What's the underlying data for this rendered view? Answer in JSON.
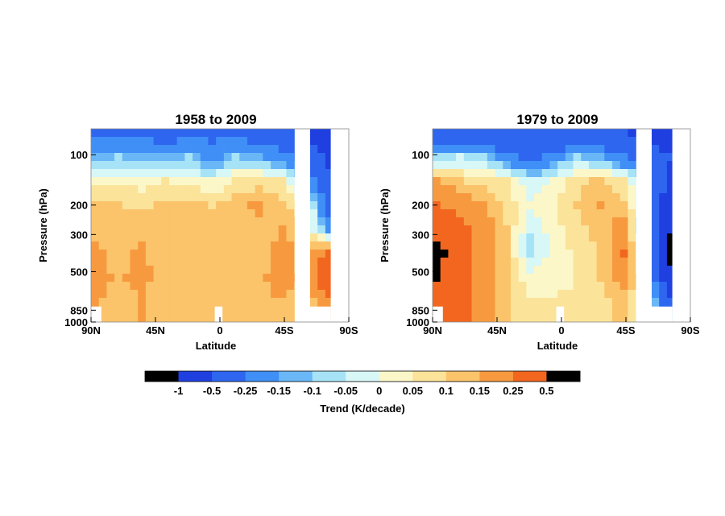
{
  "chart_data": [
    {
      "type": "heatmap",
      "title": "1958 to 2009",
      "xlabel": "Latitude",
      "ylabel": "Pressure (hPa)",
      "x_ticks": [
        "90N",
        "45N",
        "0",
        "45S",
        "90S"
      ],
      "y_ticks": [
        "100",
        "200",
        "300",
        "500",
        "850",
        "1000"
      ],
      "x_values": [
        90,
        45,
        0,
        -45,
        -90
      ],
      "y_values": [
        100,
        200,
        300,
        500,
        850,
        1000
      ],
      "y_scale": "log",
      "ylim": [
        1000,
        70
      ],
      "grid": false,
      "field": [
        [
          -0.3,
          -0.28,
          -0.3,
          -0.32,
          -0.3,
          -0.28,
          -0.3,
          -0.35,
          -0.4,
          -0.5,
          -0.7
        ],
        [
          -0.12,
          -0.1,
          -0.12,
          -0.15,
          -0.1,
          -0.2,
          -0.1,
          -0.15,
          -0.2,
          -0.3,
          -0.6
        ],
        [
          0.02,
          0.04,
          0.03,
          0.06,
          0.02,
          0.0,
          0.05,
          0.08,
          0.05,
          -0.1,
          -0.4
        ],
        [
          0.12,
          0.1,
          0.08,
          0.12,
          0.14,
          0.09,
          0.13,
          0.16,
          0.12,
          0.05,
          -0.3
        ],
        [
          0.13,
          0.12,
          0.14,
          0.12,
          0.1,
          0.12,
          0.14,
          0.13,
          0.15,
          0.1,
          -0.2
        ],
        [
          0.16,
          0.13,
          0.16,
          0.11,
          0.12,
          0.11,
          0.13,
          0.12,
          0.18,
          0.12,
          0.3
        ],
        [
          0.18,
          0.14,
          0.17,
          0.12,
          0.11,
          0.12,
          0.12,
          0.13,
          0.2,
          0.13,
          0.4
        ],
        [
          0.15,
          0.13,
          0.15,
          0.12,
          0.12,
          0.11,
          0.12,
          0.13,
          0.14,
          0.12,
          0.2
        ]
      ]
    },
    {
      "type": "heatmap",
      "title": "1979 to 2009",
      "xlabel": "Latitude",
      "ylabel": "Pressure (hPa)",
      "x_ticks": [
        "90N",
        "45N",
        "0",
        "45S",
        "90S"
      ],
      "y_ticks": [
        "100",
        "200",
        "300",
        "500",
        "850",
        "1000"
      ],
      "x_values": [
        90,
        45,
        0,
        -45,
        -90
      ],
      "y_values": [
        100,
        200,
        300,
        500,
        850,
        1000
      ],
      "y_scale": "log",
      "ylim": [
        1000,
        70
      ],
      "grid": false,
      "field": [
        [
          -0.45,
          -0.4,
          -0.42,
          -0.45,
          -0.5,
          -0.45,
          -0.4,
          -0.45,
          -0.5,
          -0.6,
          -0.8
        ],
        [
          -0.1,
          -0.05,
          -0.1,
          -0.2,
          -0.3,
          -0.2,
          -0.1,
          -0.15,
          -0.25,
          -0.3,
          -0.5
        ],
        [
          0.15,
          0.1,
          0.08,
          0.05,
          -0.05,
          0.02,
          0.08,
          0.12,
          0.05,
          -0.1,
          -0.6
        ],
        [
          0.25,
          0.2,
          0.15,
          0.08,
          0.02,
          0.04,
          0.1,
          0.15,
          0.12,
          -0.1,
          -0.8
        ],
        [
          0.4,
          0.3,
          0.2,
          0.1,
          -0.05,
          0.03,
          0.08,
          0.12,
          0.2,
          -0.2,
          -1.0
        ],
        [
          0.6,
          0.3,
          0.2,
          0.1,
          -0.08,
          0.02,
          0.06,
          0.1,
          0.25,
          -0.1,
          -1.2
        ],
        [
          0.55,
          0.3,
          0.22,
          0.1,
          0.02,
          0.04,
          0.05,
          0.1,
          0.18,
          0.0,
          -0.9
        ],
        [
          0.3,
          0.28,
          0.2,
          0.1,
          0.05,
          0.05,
          0.06,
          0.08,
          0.12,
          0.0,
          -0.4
        ]
      ]
    }
  ],
  "colorbar": {
    "label": "Trend (K/decade)",
    "tick_labels": [
      "-1",
      "-0.5",
      "-0.25",
      "-0.15",
      "-0.1",
      "-0.05",
      "0",
      "0.05",
      "0.1",
      "0.15",
      "0.25",
      "0.5"
    ],
    "bounds": [
      -1,
      -0.5,
      -0.25,
      -0.15,
      -0.1,
      -0.05,
      0,
      0.05,
      0.1,
      0.15,
      0.25,
      0.5
    ],
    "colors": [
      "#000000",
      "#1f3fe0",
      "#2e66f0",
      "#3f8ff7",
      "#6ab7f7",
      "#a6e3f7",
      "#d8f7f7",
      "#fbf7c8",
      "#fbe39a",
      "#fbc36a",
      "#f79a3f",
      "#f2661f",
      "#000000"
    ]
  }
}
